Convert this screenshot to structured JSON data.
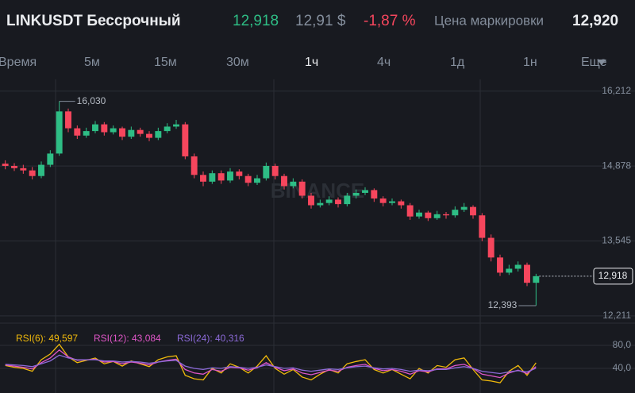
{
  "header": {
    "symbol": "LINKUSDT Бессрочный",
    "last_price": "12,918",
    "usd_price": "12,91 $",
    "change": "-1,87 %",
    "mark_label": "Цена маркировки",
    "mark_price": "12,920"
  },
  "tabs": [
    "Время",
    "5м",
    "15м",
    "30м",
    "1ч",
    "4ч",
    "1д",
    "1н",
    "Еще"
  ],
  "active_tab": 4,
  "watermark": "BINANCE",
  "chart_data": [
    {
      "type": "candlestick",
      "up_color": "#2ebd85",
      "down_color": "#f6465d",
      "open": [
        14.92,
        14.88,
        14.84,
        14.8,
        14.7,
        14.9,
        15.1,
        15.85,
        15.55,
        15.42,
        15.5,
        15.62,
        15.48,
        15.55,
        15.4,
        15.52,
        15.45,
        15.38,
        15.5,
        15.58,
        15.62,
        15.05,
        14.72,
        14.6,
        14.75,
        14.62,
        14.78,
        14.7,
        14.58,
        14.66,
        14.88,
        14.7,
        14.52,
        14.6,
        14.35,
        14.18,
        14.22,
        14.28,
        14.2,
        14.35,
        14.4,
        14.45,
        14.3,
        14.22,
        14.25,
        14.18,
        13.98,
        14.05,
        13.95,
        14.02,
        14.0,
        14.1,
        14.15,
        14.0,
        13.6,
        13.25,
        12.98,
        13.05,
        13.12,
        12.8
      ],
      "high": [
        14.98,
        14.93,
        14.9,
        14.86,
        14.96,
        15.16,
        16.03,
        15.9,
        15.6,
        15.56,
        15.68,
        15.66,
        15.6,
        15.58,
        15.58,
        15.56,
        15.5,
        15.56,
        15.64,
        15.7,
        15.66,
        15.1,
        14.78,
        14.8,
        14.8,
        14.84,
        14.82,
        14.74,
        14.72,
        14.94,
        14.92,
        14.74,
        14.66,
        14.64,
        14.4,
        14.28,
        14.34,
        14.32,
        14.4,
        14.46,
        14.5,
        14.48,
        14.34,
        14.3,
        14.28,
        14.22,
        14.1,
        14.08,
        14.08,
        14.06,
        14.16,
        14.22,
        14.18,
        14.04,
        13.66,
        13.3,
        13.12,
        13.18,
        13.16,
        12.96
      ],
      "low": [
        14.82,
        14.79,
        14.74,
        14.64,
        14.66,
        14.86,
        15.06,
        15.48,
        15.36,
        15.38,
        15.46,
        15.42,
        15.44,
        15.34,
        15.36,
        15.4,
        15.32,
        15.34,
        15.46,
        15.54,
        15.0,
        14.66,
        14.52,
        14.56,
        14.56,
        14.58,
        14.64,
        14.52,
        14.54,
        14.62,
        14.64,
        14.46,
        14.48,
        14.3,
        14.12,
        14.14,
        14.18,
        14.14,
        14.16,
        14.3,
        14.36,
        14.24,
        14.16,
        14.18,
        14.12,
        13.92,
        13.94,
        13.9,
        13.92,
        13.94,
        13.96,
        14.06,
        13.94,
        13.54,
        13.18,
        12.92,
        12.94,
        13.0,
        12.74,
        12.393
      ],
      "close": [
        14.88,
        14.84,
        14.8,
        14.7,
        14.9,
        15.1,
        15.85,
        15.55,
        15.42,
        15.5,
        15.62,
        15.48,
        15.55,
        15.4,
        15.52,
        15.45,
        15.38,
        15.5,
        15.58,
        15.62,
        15.05,
        14.72,
        14.6,
        14.75,
        14.62,
        14.78,
        14.7,
        14.58,
        14.66,
        14.88,
        14.7,
        14.52,
        14.6,
        14.35,
        14.18,
        14.22,
        14.28,
        14.2,
        14.35,
        14.4,
        14.45,
        14.3,
        14.22,
        14.25,
        14.18,
        13.98,
        14.05,
        13.95,
        14.02,
        14.0,
        14.1,
        14.15,
        14.0,
        13.6,
        13.25,
        12.98,
        13.05,
        13.12,
        12.8,
        12.918
      ],
      "ylim": [
        12.11,
        16.42
      ],
      "yticks": [
        {
          "value": 16.212,
          "label": "16,212"
        },
        {
          "value": 14.878,
          "label": "14,878"
        },
        {
          "value": 13.545,
          "label": "13,545"
        },
        {
          "value": 12.211,
          "label": "12,211"
        }
      ],
      "grid": true,
      "annotations": [
        {
          "value": 16.03,
          "label": "16,030",
          "index": 6
        },
        {
          "value": 12.393,
          "label": "12,393",
          "index": 59
        }
      ],
      "current_price": {
        "value": 12.918,
        "label": "12,918"
      }
    },
    {
      "type": "line",
      "ylim": [
        0,
        120
      ],
      "yticks": [
        {
          "value": 80,
          "label": "80,0"
        },
        {
          "value": 40,
          "label": "40,0"
        }
      ],
      "series": [
        {
          "name": "RSI(6)",
          "legend": "RSI(6): 49,597",
          "color": "#f0b90b",
          "values": [
            45,
            42,
            40,
            35,
            55,
            65,
            82,
            60,
            50,
            54,
            58,
            48,
            52,
            44,
            53,
            48,
            43,
            55,
            60,
            62,
            28,
            22,
            20,
            40,
            32,
            48,
            42,
            32,
            44,
            62,
            40,
            30,
            38,
            25,
            20,
            30,
            38,
            32,
            48,
            52,
            55,
            38,
            32,
            38,
            30,
            22,
            40,
            32,
            45,
            42,
            55,
            58,
            38,
            20,
            18,
            15,
            35,
            45,
            28,
            49.597
          ]
        },
        {
          "name": "RSI(12)",
          "legend": "RSI(12): 43,084",
          "color": "#e056c8",
          "values": [
            46,
            44,
            42,
            39,
            50,
            58,
            72,
            60,
            54,
            55,
            56,
            51,
            52,
            48,
            51,
            49,
            46,
            51,
            54,
            56,
            38,
            32,
            30,
            38,
            35,
            42,
            41,
            37,
            41,
            50,
            42,
            36,
            39,
            32,
            29,
            33,
            37,
            35,
            42,
            45,
            47,
            40,
            36,
            38,
            35,
            30,
            36,
            34,
            39,
            39,
            45,
            47,
            40,
            30,
            27,
            24,
            32,
            37,
            31,
            43.084
          ]
        },
        {
          "name": "RSI(24)",
          "legend": "RSI(24): 40,316",
          "color": "#8c6ad8",
          "values": [
            47,
            46,
            45,
            43,
            48,
            53,
            63,
            58,
            55,
            55,
            55,
            53,
            53,
            51,
            52,
            51,
            49,
            51,
            53,
            54,
            44,
            40,
            38,
            41,
            40,
            43,
            42,
            40,
            42,
            46,
            43,
            40,
            41,
            37,
            35,
            37,
            39,
            38,
            41,
            43,
            44,
            41,
            39,
            40,
            38,
            35,
            37,
            36,
            38,
            38,
            41,
            43,
            40,
            35,
            33,
            31,
            34,
            36,
            34,
            40.316
          ]
        }
      ]
    }
  ]
}
